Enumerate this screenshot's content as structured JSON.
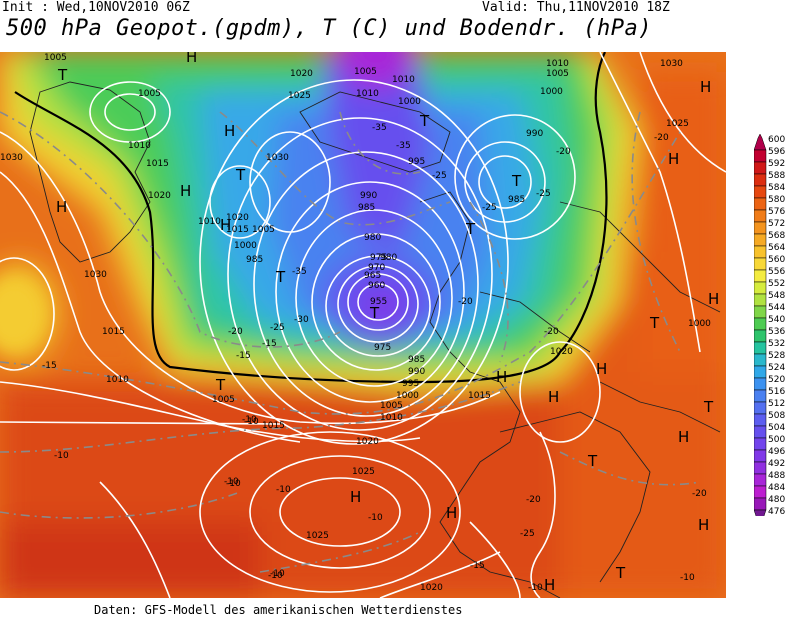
{
  "header": {
    "init": "Init : Wed,10NOV2010 06Z",
    "valid": "Valid: Thu,11NOV2010 18Z",
    "title": "500 hPa Geopot.(gpdm), T (C) und Bodendr. (hPa)"
  },
  "footer": "Daten: GFS-Modell des amerikanischen Wetterdienstes",
  "scale": {
    "values": [
      "600",
      "596",
      "592",
      "588",
      "584",
      "580",
      "576",
      "572",
      "568",
      "564",
      "560",
      "556",
      "552",
      "548",
      "544",
      "540",
      "536",
      "532",
      "528",
      "524",
      "520",
      "516",
      "512",
      "508",
      "504",
      "500",
      "496",
      "492",
      "488",
      "484",
      "480",
      "476"
    ],
    "colors": [
      "#b0004a",
      "#c20030",
      "#d01818",
      "#dc2e10",
      "#e64810",
      "#ec6414",
      "#f07c18",
      "#f4941e",
      "#f6aa24",
      "#f8c22c",
      "#f8d838",
      "#f4ec40",
      "#d6ec3e",
      "#b0e240",
      "#80d648",
      "#4ecc52",
      "#2ec46c",
      "#26c4a0",
      "#2ab8cc",
      "#30a8e8",
      "#3c92f0",
      "#4a80f0",
      "#5470f0",
      "#5c5ef0",
      "#6650ee",
      "#7244ec",
      "#8038e8",
      "#9030e0",
      "#a826d8",
      "#bc1ed0",
      "#9818b8",
      "#701890"
    ]
  },
  "map_labels": {
    "highs": [
      "H",
      "H",
      "H",
      "H",
      "H",
      "H",
      "H",
      "H",
      "H",
      "H",
      "H",
      "H",
      "H",
      "H",
      "H",
      "H"
    ],
    "lows": [
      "T",
      "T",
      "T",
      "T",
      "T",
      "T",
      "T",
      "T",
      "T",
      "T",
      "T",
      "T"
    ],
    "pressure": [
      "1005",
      "1005",
      "1010",
      "1015",
      "1020",
      "1030",
      "1030",
      "1010",
      "1015",
      "1020",
      "1005",
      "1000",
      "985",
      "1025",
      "1020",
      "1030",
      "1010",
      "1010",
      "1005",
      "1000",
      "995",
      "990",
      "985",
      "980",
      "975",
      "970",
      "965",
      "960",
      "955",
      "975",
      "980",
      "985",
      "990",
      "995",
      "1000",
      "1005",
      "1010",
      "1015",
      "1020",
      "1025",
      "1025",
      "1020",
      "1015",
      "1010",
      "1005",
      "1030",
      "1025",
      "1000",
      "990",
      "985",
      "1010",
      "1005",
      "1015",
      "1020",
      "1000"
    ],
    "temps": [
      "-10",
      "-10",
      "-10",
      "-10",
      "-10",
      "-10",
      "-15",
      "-15",
      "-15",
      "-20",
      "-20",
      "-25",
      "-25",
      "-30",
      "-35",
      "-35",
      "-35",
      "-25",
      "-25",
      "-20",
      "-20",
      "-20",
      "-20",
      "-25",
      "-20",
      "-10",
      "-10",
      "-10",
      "-10",
      "-15",
      "-10"
    ]
  }
}
